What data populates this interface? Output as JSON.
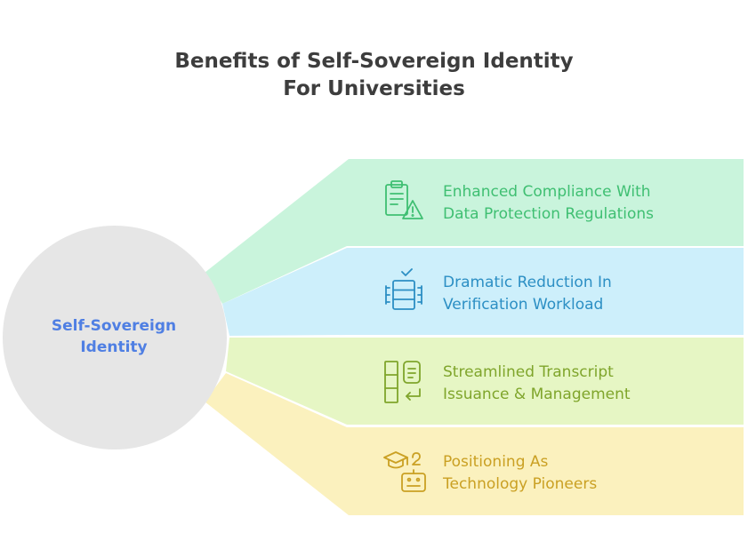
{
  "title": {
    "line1": "Benefits of Self-Sovereign Identity",
    "line2": "For Universities"
  },
  "center": {
    "line1": "Self-Sovereign",
    "line2": "Identity"
  },
  "benefits": [
    {
      "line1": "Enhanced Compliance With",
      "line2": "Data Protection Regulations",
      "icon": "compliance-clipboard-warning-icon",
      "color": "#3fbf72",
      "fill": "#c9f4dc"
    },
    {
      "line1": "Dramatic Reduction In",
      "line2": "Verification Workload",
      "icon": "reduced-stack-icon",
      "color": "#2c8fc4",
      "fill": "#cdeffb"
    },
    {
      "line1": "Streamlined Transcript",
      "line2": "Issuance & Management",
      "icon": "transcript-document-icon",
      "color": "#7fa52b",
      "fill": "#e6f6c4"
    },
    {
      "line1": "Positioning As",
      "line2": "Technology Pioneers",
      "icon": "graduation-robot-icon",
      "color": "#caa023",
      "fill": "#fbf1be"
    }
  ],
  "colors": {
    "title": "#3d3d3d",
    "center_text": "#4f7fe3",
    "center_circle": "#e6e6e6"
  }
}
